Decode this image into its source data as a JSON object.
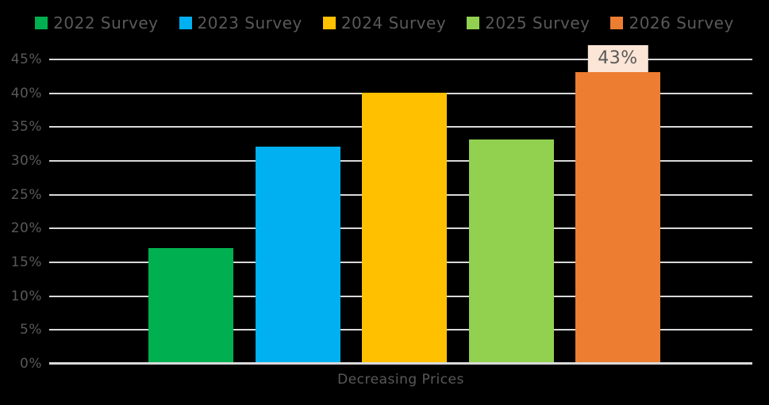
{
  "chart_data": {
    "type": "bar",
    "categories": [
      "Decreasing Prices"
    ],
    "series": [
      {
        "name": "2022 Survey",
        "color": "#00B050",
        "values": [
          17
        ]
      },
      {
        "name": "2023 Survey",
        "color": "#00B0F0",
        "values": [
          32
        ]
      },
      {
        "name": "2024 Survey",
        "color": "#FFC000",
        "values": [
          40
        ]
      },
      {
        "name": "2025 Survey",
        "color": "#92D050",
        "values": [
          33
        ]
      },
      {
        "name": "2026 Survey",
        "color": "#ED7D31",
        "values": [
          43
        ]
      }
    ],
    "title": "",
    "xlabel": "Decreasing Prices",
    "ylabel": "",
    "ylim": [
      0,
      45
    ],
    "ytick_step": 5,
    "ytick_labels": [
      "0%",
      "5%",
      "10%",
      "15%",
      "20%",
      "25%",
      "30%",
      "35%",
      "40%",
      "45%"
    ],
    "grid": "horizontal",
    "legend_position": "top",
    "annotations": [
      {
        "text": "43%",
        "series": "2026 Survey"
      }
    ]
  },
  "colors": {
    "background": "#000000",
    "gridline": "#D9D9D9",
    "axis_text": "#595959",
    "legend_text": "#595959",
    "annotation_bg": "#FBE5D6",
    "annotation_text": "#595959"
  }
}
